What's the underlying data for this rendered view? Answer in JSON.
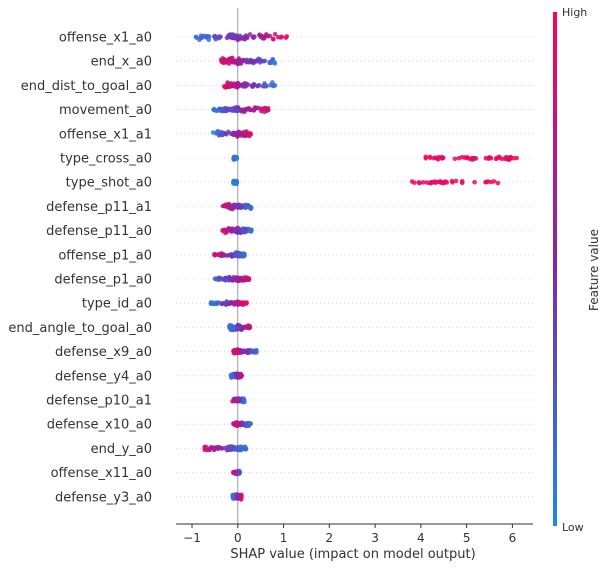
{
  "chart_data": {
    "type": "scatter",
    "subtype": "shap-beeswarm",
    "title": "",
    "xlabel": "SHAP value (impact on model output)",
    "ylabel": "",
    "xlim": [
      -1.35,
      6.45
    ],
    "xticks": [
      -1,
      0,
      1,
      2,
      3,
      4,
      5,
      6
    ],
    "colorbar": {
      "title": "Feature value",
      "high_label": "High",
      "low_label": "Low",
      "low_color": "#1E88E5",
      "mid_color": "#7B2BB0",
      "high_color": "#FF0052"
    },
    "features": [
      {
        "name": "offense_x1_a0",
        "min": -0.95,
        "max": 1.1,
        "low_side": "left",
        "spread": 0.55
      },
      {
        "name": "end_x_a0",
        "min": -0.4,
        "max": 0.85,
        "low_side": "right",
        "spread": 0.5
      },
      {
        "name": "end_dist_to_goal_a0",
        "min": -0.3,
        "max": 0.82,
        "low_side": "right",
        "spread": 0.5
      },
      {
        "name": "movement_a0",
        "min": -0.55,
        "max": 0.7,
        "low_side": "left",
        "spread": 0.45
      },
      {
        "name": "offense_x1_a1",
        "min": -0.55,
        "max": 0.3,
        "low_side": "left",
        "spread": 0.45
      },
      {
        "name": "type_cross_a0",
        "min": -0.1,
        "max": 6.15,
        "low_side": "left",
        "spread": 0.3,
        "high_min": 4.1,
        "low_max": -0.02
      },
      {
        "name": "type_shot_a0",
        "min": -0.1,
        "max": 5.7,
        "low_side": "left",
        "spread": 0.3,
        "high_min": 3.8,
        "low_max": -0.02
      },
      {
        "name": "defense_p11_a1",
        "min": -0.35,
        "max": 0.3,
        "low_side": "right",
        "spread": 0.45
      },
      {
        "name": "defense_p11_a0",
        "min": -0.35,
        "max": 0.3,
        "low_side": "right",
        "spread": 0.45
      },
      {
        "name": "offense_p1_a0",
        "min": -0.55,
        "max": 0.15,
        "low_side": "right",
        "spread": 0.4
      },
      {
        "name": "defense_p1_a0",
        "min": -0.55,
        "max": 0.25,
        "low_side": "left",
        "spread": 0.4
      },
      {
        "name": "type_id_a0",
        "min": -0.6,
        "max": 0.2,
        "low_side": "left",
        "spread": 0.3
      },
      {
        "name": "end_angle_to_goal_a0",
        "min": -0.2,
        "max": 0.3,
        "low_side": "left",
        "spread": 0.45
      },
      {
        "name": "defense_x9_a0",
        "min": -0.1,
        "max": 0.42,
        "low_side": "right",
        "spread": 0.35
      },
      {
        "name": "defense_y4_a0",
        "min": -0.15,
        "max": 0.1,
        "low_side": "left",
        "spread": 0.45
      },
      {
        "name": "defense_p10_a1",
        "min": -0.12,
        "max": 0.15,
        "low_side": "right",
        "spread": 0.35
      },
      {
        "name": "defense_x10_a0",
        "min": -0.1,
        "max": 0.28,
        "low_side": "right",
        "spread": 0.35
      },
      {
        "name": "end_y_a0",
        "min": -0.75,
        "max": 0.18,
        "low_side": "right",
        "spread": 0.35
      },
      {
        "name": "offense_x11_a0",
        "min": -0.1,
        "max": 0.05,
        "low_side": "right",
        "spread": 0.3
      },
      {
        "name": "defense_y3_a0",
        "min": -0.12,
        "max": 0.08,
        "low_side": "left",
        "spread": 0.45
      }
    ]
  }
}
